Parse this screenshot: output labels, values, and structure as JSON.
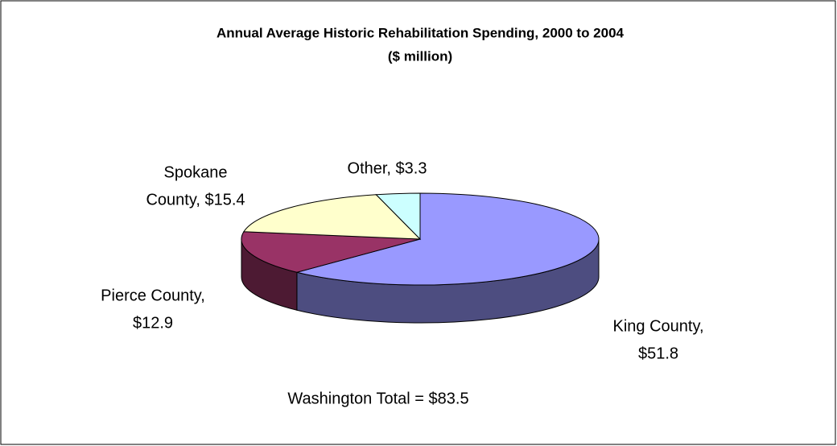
{
  "chart_data": {
    "type": "pie3d",
    "title": "Annual Average Historic Rehabilitation Spending, 2000 to 2004",
    "subtitle": "($ million)",
    "categories": [
      "King County",
      "Pierce County",
      "Spokane County",
      "Other"
    ],
    "values": [
      51.8,
      12.9,
      15.4,
      3.3
    ],
    "value_labels": [
      [
        "King County,",
        "$51.8"
      ],
      [
        "Pierce County,",
        "$12.9"
      ],
      [
        "Spokane",
        "County, $15.4"
      ],
      [
        "Other, $3.3"
      ]
    ],
    "colors": [
      "#9999ff",
      "#993366",
      "#ffffcc",
      "#ccffff"
    ],
    "side_colors": [
      "#4d4d80",
      "#4d1a33",
      "#80806a",
      "#6a8080"
    ],
    "annotation": "Washington Total = $83.5"
  }
}
